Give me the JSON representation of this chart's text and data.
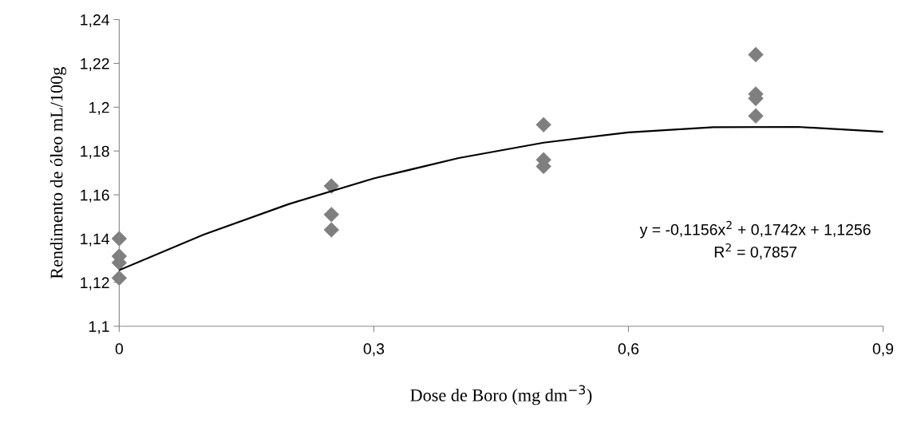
{
  "chart_data": {
    "type": "scatter",
    "xlabel": "Dose de Boro (mg dm$^{−3}$)",
    "ylabel": "Rendimento de óleo mL/100g",
    "series": [
      {
        "color": "#7f7f7f",
        "marker": "diamond",
        "x": [
          0,
          0,
          0,
          0,
          0.25,
          0.25,
          0.25,
          0.5,
          0.5,
          0.5,
          0.75,
          0.75,
          0.75,
          0.75
        ],
        "values": [
          1.14,
          1.132,
          1.129,
          1.122,
          1.164,
          1.151,
          1.144,
          1.192,
          1.176,
          1.173,
          1.224,
          1.206,
          1.204,
          1.196
        ]
      },
      {
        "type": "line",
        "color": "#000000",
        "marker": "none",
        "line_style": "solid",
        "x": [
          0,
          0.1,
          0.2,
          0.3,
          0.4,
          0.5,
          0.6,
          0.7,
          0.8,
          0.9
        ],
        "values": [
          1.1256,
          1.1419,
          1.1558,
          1.1675,
          1.1768,
          1.1838,
          1.1885,
          1.1909,
          1.191,
          1.1888
        ]
      }
    ],
    "annotations": [
      "y = -0,1156x$^{2}$ + 0,1742x + 1,1256",
      "R$^{2}$ = 0,7857"
    ],
    "xlim": [
      0,
      0.9
    ],
    "ylim": [
      1.1,
      1.24
    ],
    "xticks": [
      0,
      {
        "value": 0.3,
        "label": "0,3"
      },
      {
        "value": 0.6,
        "label": "0,6"
      },
      {
        "value": 0.9,
        "label": "0,9"
      }
    ],
    "yticks": [
      {
        "value": 1.1,
        "label": "1,1"
      },
      {
        "value": 1.12,
        "label": "1,12"
      },
      {
        "value": 1.14,
        "label": "1,14"
      },
      {
        "value": 1.16,
        "label": "1,16"
      },
      {
        "value": 1.18,
        "label": "1,18"
      },
      {
        "value": 1.2,
        "label": "1,2"
      },
      {
        "value": 1.22,
        "label": "1,22"
      },
      {
        "value": 1.24,
        "label": "1,24"
      }
    ],
    "grid": false,
    "legend": false
  }
}
